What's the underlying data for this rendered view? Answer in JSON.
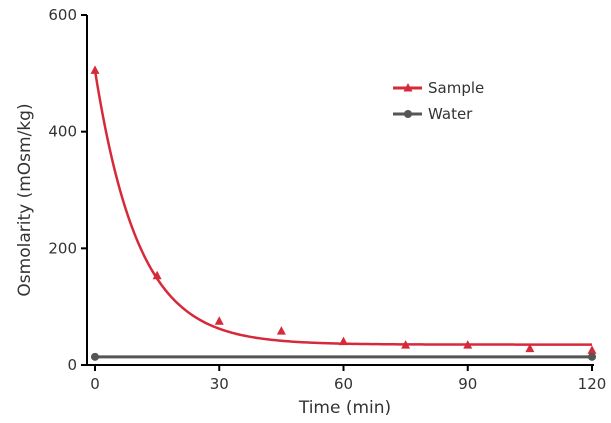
{
  "chart_data": {
    "type": "scatter",
    "title": "",
    "xlabel": "Time (min)",
    "ylabel": "Osmolarity (mOsm/kg)",
    "xlim": [
      0,
      120
    ],
    "ylim": [
      0,
      600
    ],
    "x_ticks": [
      "0",
      "30",
      "60",
      "90",
      "120"
    ],
    "y_ticks": [
      "0",
      "200",
      "400",
      "600"
    ],
    "grid": false,
    "legend_position": "top-right",
    "series": [
      {
        "name": "Sample",
        "color": "#d62a3a",
        "marker": "triangle",
        "x": [
          0,
          15,
          30,
          45,
          60,
          75,
          90,
          105,
          120
        ],
        "y": [
          505,
          153,
          75,
          58,
          40,
          34,
          34,
          28,
          25
        ],
        "fit": {
          "model": "exponential-decay",
          "y0": 505,
          "plateau": 35,
          "k": 0.095
        }
      },
      {
        "name": "Water",
        "color": "#555555",
        "marker": "circle",
        "x": [
          0,
          120
        ],
        "y": [
          14,
          14
        ]
      }
    ]
  }
}
